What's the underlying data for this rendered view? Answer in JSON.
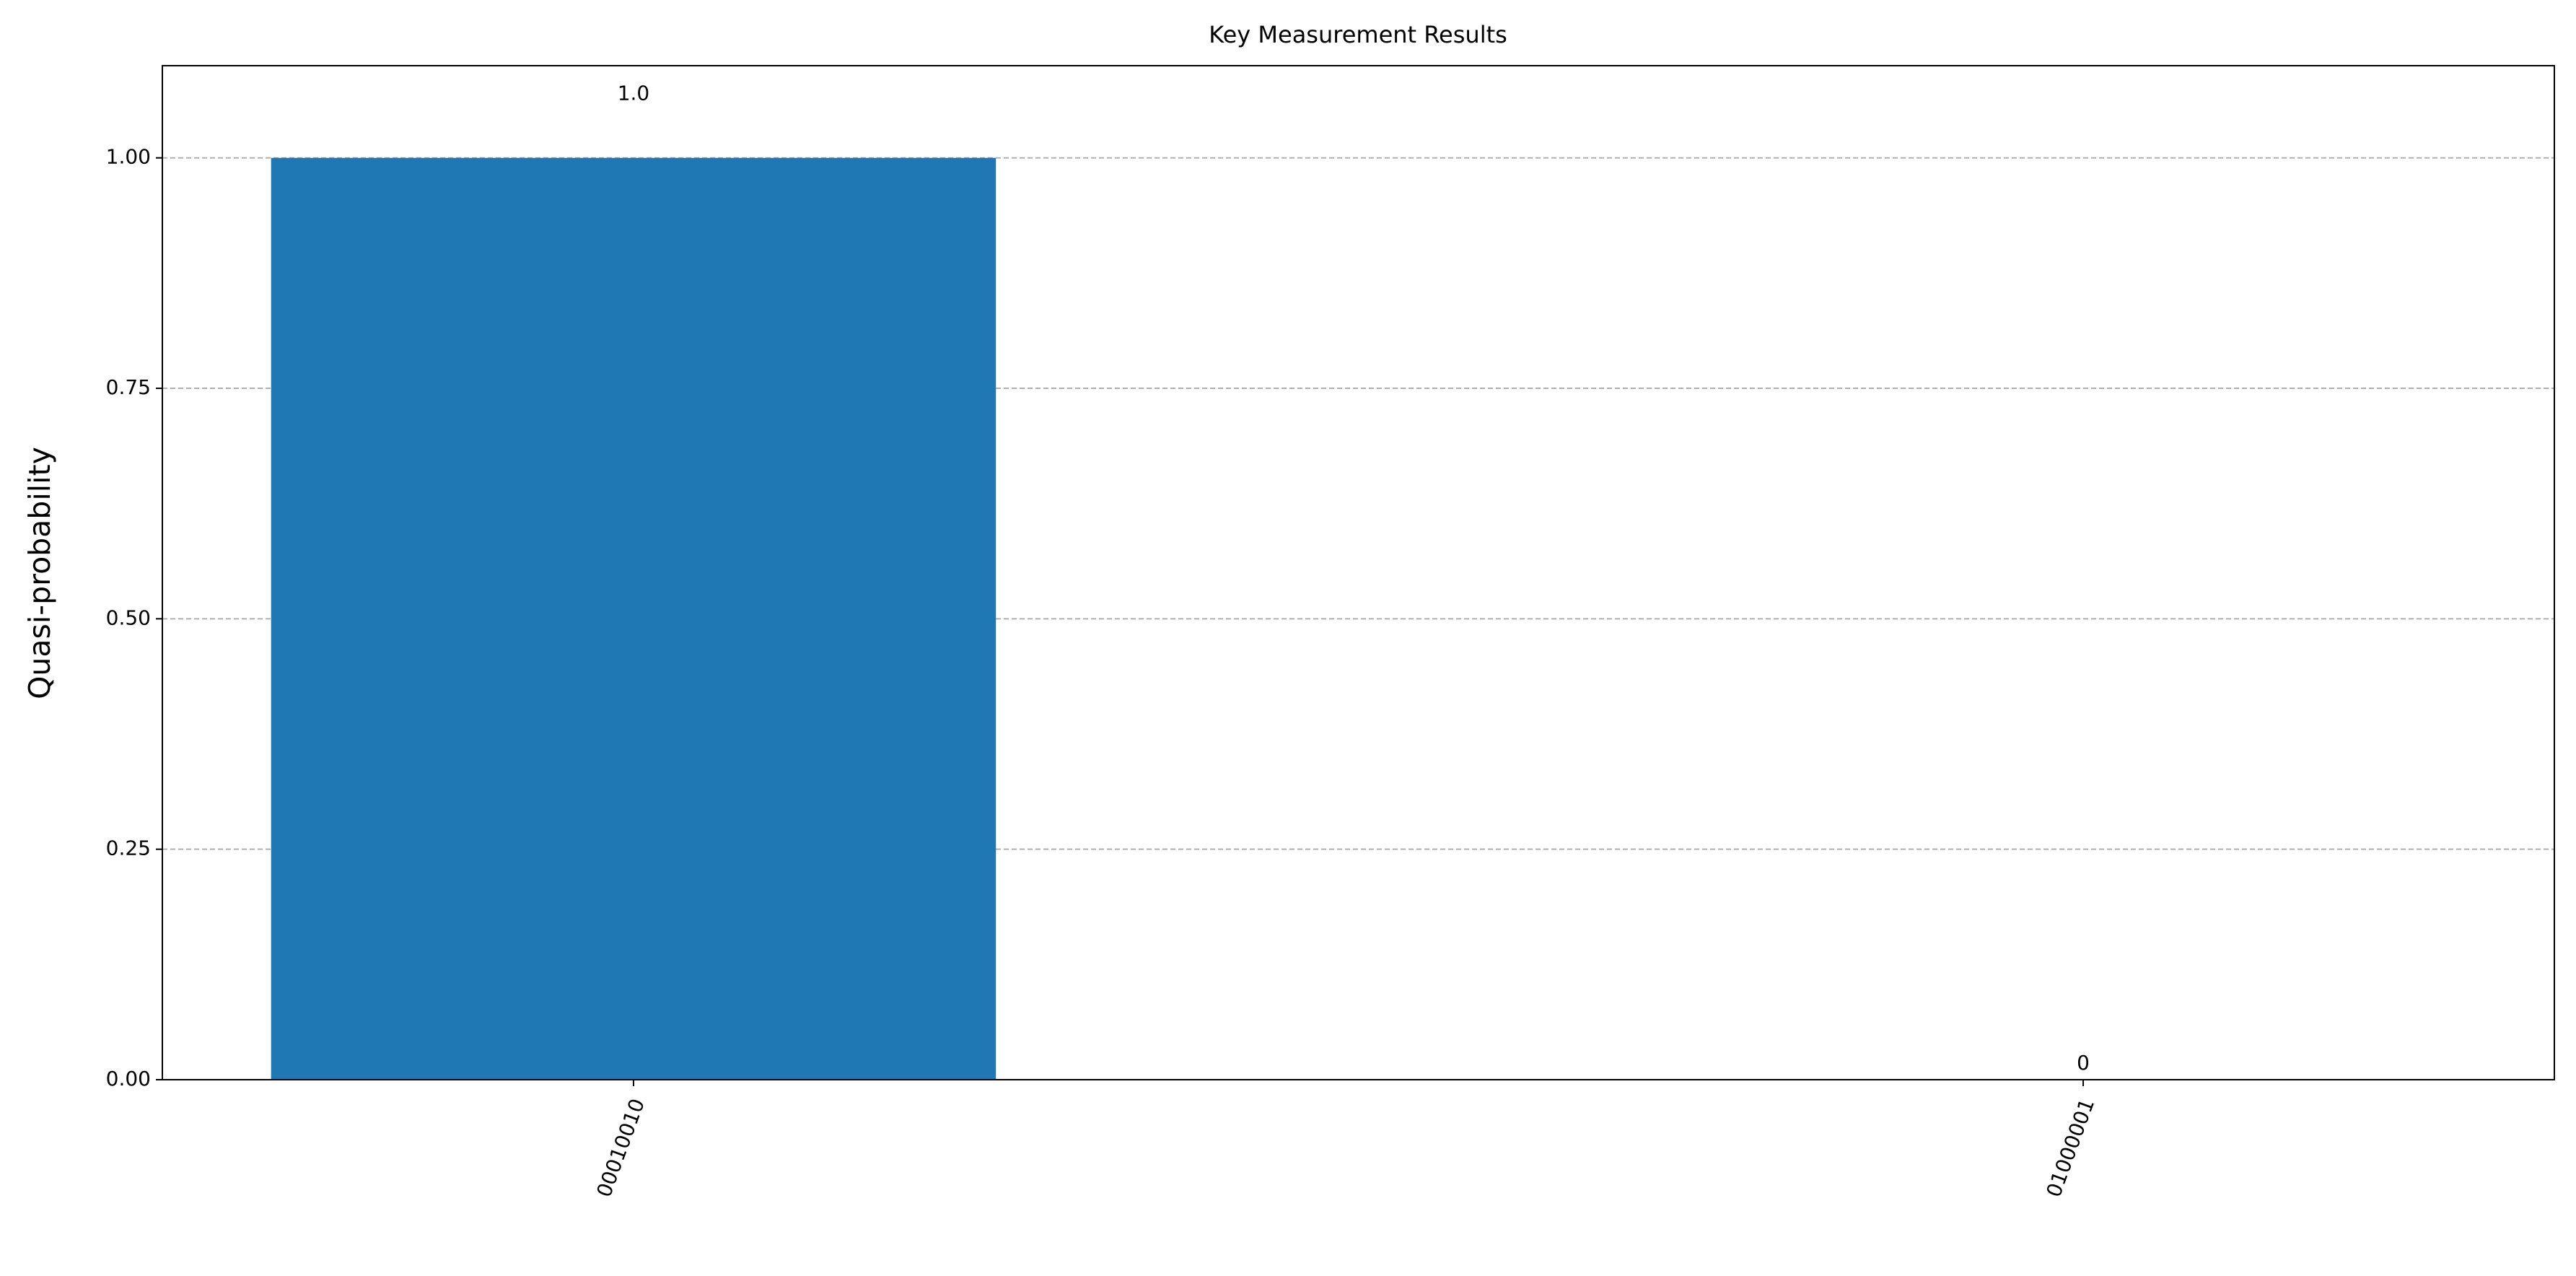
{
  "chart_data": {
    "type": "bar",
    "title": "Key Measurement Results",
    "y_label": "Quasi-probability",
    "categories": [
      "00010010",
      "01000001"
    ],
    "values": [
      1.0,
      0
    ],
    "value_labels": [
      "1.0",
      "0"
    ],
    "color": "#1f77b4",
    "ylim": [
      0,
      1.1
    ],
    "yticks": [
      {
        "value": 0,
        "label": "0.00"
      },
      {
        "value": 0.25,
        "label": "0.25"
      },
      {
        "value": 0.5,
        "label": "0.50"
      },
      {
        "value": 0.75,
        "label": "0.75"
      },
      {
        "value": 1.0,
        "label": "1.00"
      }
    ],
    "grid": true
  }
}
